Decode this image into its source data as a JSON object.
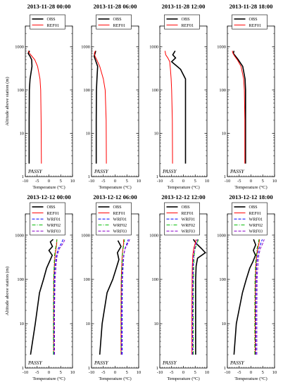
{
  "figure": {
    "ylabel": "Altitude above station (m)",
    "xlabel": "Temperature (°C)",
    "site_label": "PASSY",
    "x_ticks": [
      "-10",
      "-5",
      "0",
      "5",
      "10"
    ],
    "y_ticks": [
      "1",
      "10",
      "100",
      "1000"
    ]
  },
  "chart_data": [
    {
      "type": "line",
      "title": "2013-11-28 00:00",
      "xlabel": "Temperature (°C)",
      "ylabel": "Altitude above station (m)",
      "xlim": [
        -10,
        10
      ],
      "ylim": [
        1,
        3000
      ],
      "y_scale": "log",
      "grid": false,
      "legend_position": "top",
      "series": [
        {
          "name": "OBS",
          "color": "#000000",
          "dash": "solid",
          "x": [
            -8.4,
            -8.4,
            -8.3,
            -8,
            -7.2,
            -7.3,
            -8,
            -8.8,
            -8.2
          ],
          "y": [
            2,
            20,
            100,
            180,
            350,
            500,
            600,
            700,
            800
          ]
        },
        {
          "name": "REF01",
          "color": "#ff0000",
          "dash": "solid",
          "x": [
            -3.2,
            -3.3,
            -3.5,
            -3.8,
            -4.8,
            -6,
            -7.2,
            -8.2,
            -8.8
          ],
          "y": [
            2,
            20,
            100,
            180,
            350,
            500,
            600,
            700,
            800
          ]
        }
      ]
    },
    {
      "type": "line",
      "title": "2013-11-28 06:00",
      "xlabel": "Temperature (°C)",
      "ylabel": "",
      "xlim": [
        -10,
        10
      ],
      "ylim": [
        1,
        3000
      ],
      "y_scale": "log",
      "grid": false,
      "legend_position": "top",
      "series": [
        {
          "name": "OBS",
          "color": "#000000",
          "dash": "solid",
          "x": [
            -8,
            -8,
            -7.9,
            -7.7,
            -7.4,
            -8.4,
            -8.9,
            -8.5,
            -8.2
          ],
          "y": [
            2,
            20,
            100,
            180,
            350,
            500,
            600,
            700,
            800
          ]
        },
        {
          "name": "REF01",
          "color": "#ff0000",
          "dash": "solid",
          "x": [
            -3.7,
            -3.8,
            -4.2,
            -5,
            -6.5,
            -7.8,
            -8.5,
            -8.8,
            -8.4
          ],
          "y": [
            2,
            20,
            100,
            180,
            350,
            500,
            600,
            700,
            800
          ]
        }
      ]
    },
    {
      "type": "line",
      "title": "2013-11-28 12:00",
      "xlabel": "Temperature (°C)",
      "ylabel": "",
      "xlim": [
        -10,
        10
      ],
      "ylim": [
        1,
        3000
      ],
      "y_scale": "log",
      "grid": false,
      "legend_position": "top",
      "series": [
        {
          "name": "OBS",
          "color": "#000000",
          "dash": "solid",
          "x": [
            0.9,
            0.9,
            0.9,
            0.9,
            -1.2,
            -5,
            -3.3,
            -4.5,
            -3.5
          ],
          "y": [
            2,
            20,
            100,
            180,
            300,
            450,
            550,
            650,
            800
          ]
        },
        {
          "name": "REF01",
          "color": "#ff0000",
          "dash": "solid",
          "x": [
            -4.6,
            -4.7,
            -5,
            -5.2,
            -5.5,
            -5.8,
            -6.6,
            -7.5,
            -7.8
          ],
          "y": [
            2,
            20,
            100,
            180,
            300,
            450,
            550,
            650,
            800
          ]
        }
      ]
    },
    {
      "type": "line",
      "title": "2013-11-28 18:00",
      "xlabel": "Temperature (°C)",
      "ylabel": "",
      "xlim": [
        -10,
        10
      ],
      "ylim": [
        1,
        3000
      ],
      "y_scale": "log",
      "grid": false,
      "legend_position": "top",
      "series": [
        {
          "name": "OBS",
          "color": "#000000",
          "dash": "solid",
          "x": [
            -2.3,
            -2.3,
            -2.3,
            -2.5,
            -3.5,
            -5.4,
            -6.5,
            -7.5,
            -7.2
          ],
          "y": [
            2,
            20,
            100,
            180,
            350,
            500,
            600,
            700,
            800
          ]
        },
        {
          "name": "REF01",
          "color": "#ff0000",
          "dash": "solid",
          "x": [
            -2.6,
            -2.6,
            -2.8,
            -3.1,
            -4.2,
            -5.8,
            -6.9,
            -7.6,
            -7.9
          ],
          "y": [
            2,
            20,
            100,
            180,
            350,
            500,
            600,
            700,
            800
          ]
        }
      ]
    },
    {
      "type": "line",
      "title": "2013-12-12 00:00",
      "xlabel": "Temperature (°C)",
      "ylabel": "Altitude above station (m)",
      "xlim": [
        -10,
        10
      ],
      "ylim": [
        1,
        3000
      ],
      "y_scale": "log",
      "grid": false,
      "legend_position": "top",
      "series": [
        {
          "name": "OBS",
          "color": "#000000",
          "dash": "solid",
          "x": [
            -7.8,
            -5.8,
            -4,
            -2.3,
            -1,
            0.2,
            1.4,
            0,
            1.5,
            0.6,
            1.8
          ],
          "y": [
            2,
            10,
            50,
            100,
            180,
            250,
            350,
            450,
            550,
            700,
            800
          ]
        },
        {
          "name": "REF01",
          "color": "#ff0000",
          "dash": "solid",
          "x": [
            2,
            2,
            2.1,
            2.3,
            2.6,
            3,
            3.3,
            3.3
          ],
          "y": [
            2,
            20,
            100,
            200,
            350,
            500,
            650,
            800
          ]
        },
        {
          "name": "WRF01",
          "color": "#0000ff",
          "dash": "dashed",
          "x": [
            2.2,
            2.2,
            2.3,
            2.6,
            3.2,
            4,
            5.3,
            6
          ],
          "y": [
            2,
            20,
            100,
            200,
            350,
            500,
            650,
            800
          ]
        },
        {
          "name": "WRF02",
          "color": "#00bb00",
          "dash": "dashdot",
          "x": [
            1.9,
            1.9,
            2,
            2.2,
            2.4,
            2.8,
            3.2,
            3.4
          ],
          "y": [
            2,
            20,
            100,
            200,
            350,
            500,
            650,
            800
          ]
        },
        {
          "name": "WRF03",
          "color": "#8a00c8",
          "dash": "dashed",
          "x": [
            2.4,
            2.4,
            2.6,
            3,
            3.5,
            4.5,
            6,
            6.8
          ],
          "y": [
            2,
            20,
            100,
            200,
            350,
            500,
            650,
            800
          ]
        }
      ]
    },
    {
      "type": "line",
      "title": "2013-12-12 06:00",
      "xlabel": "Temperature (°C)",
      "ylabel": "",
      "xlim": [
        -10,
        10
      ],
      "ylim": [
        1,
        3000
      ],
      "y_scale": "log",
      "grid": false,
      "legend_position": "top",
      "series": [
        {
          "name": "OBS",
          "color": "#000000",
          "dash": "solid",
          "x": [
            -6.5,
            -5.5,
            -3.4,
            -1,
            0.5,
            1.6,
            1,
            2.5,
            1.2
          ],
          "y": [
            2,
            10,
            50,
            100,
            180,
            280,
            400,
            550,
            750
          ]
        },
        {
          "name": "REF01",
          "color": "#ff0000",
          "dash": "solid",
          "x": [
            2.5,
            2.5,
            2.6,
            2.8,
            3,
            3.3,
            3.6,
            3.6
          ],
          "y": [
            2,
            20,
            100,
            200,
            350,
            500,
            650,
            800
          ]
        },
        {
          "name": "WRF01",
          "color": "#0000ff",
          "dash": "dashed",
          "x": [
            3,
            3,
            3.1,
            3.4,
            3.7,
            4.2,
            5,
            5.6
          ],
          "y": [
            2,
            20,
            100,
            200,
            350,
            500,
            650,
            800
          ]
        },
        {
          "name": "WRF02",
          "color": "#00bb00",
          "dash": "dashdot",
          "x": [
            2.6,
            2.6,
            2.7,
            2.9,
            3.1,
            3.4,
            3.8,
            4
          ],
          "y": [
            2,
            20,
            100,
            200,
            350,
            500,
            650,
            800
          ]
        },
        {
          "name": "WRF03",
          "color": "#8a00c8",
          "dash": "dashed",
          "x": [
            2.7,
            2.7,
            2.9,
            3.2,
            3.6,
            4.3,
            5.4,
            6.2
          ],
          "y": [
            2,
            20,
            100,
            200,
            350,
            500,
            650,
            800
          ]
        }
      ]
    },
    {
      "type": "line",
      "title": "2013-12-12 12:00",
      "xlabel": "Temperature (°C)",
      "ylabel": "",
      "xlim": [
        -10,
        10
      ],
      "ylim": [
        1,
        3000
      ],
      "y_scale": "log",
      "grid": false,
      "legend_position": "top",
      "series": [
        {
          "name": "OBS",
          "color": "#000000",
          "dash": "solid",
          "x": [
            5.2,
            5.2,
            5.2,
            5.4,
            6,
            9.3,
            7.6,
            5.4,
            4.2
          ],
          "y": [
            2,
            20,
            100,
            200,
            300,
            400,
            500,
            650,
            800
          ]
        },
        {
          "name": "REF01",
          "color": "#ff0000",
          "dash": "solid",
          "x": [
            3.6,
            3.6,
            3.7,
            3.8,
            4,
            4.4,
            5,
            5.4
          ],
          "y": [
            2,
            20,
            100,
            200,
            350,
            500,
            650,
            800
          ]
        },
        {
          "name": "WRF01",
          "color": "#0000ff",
          "dash": "dashed",
          "x": [
            4,
            4,
            4.1,
            4.2,
            4.4,
            4.8,
            5.5,
            6
          ],
          "y": [
            2,
            20,
            100,
            200,
            350,
            500,
            650,
            800
          ]
        },
        {
          "name": "WRF02",
          "color": "#00bb00",
          "dash": "dashdot",
          "x": [
            4.2,
            4.2,
            4.3,
            4.4,
            4.6,
            5,
            5.8,
            6.4
          ],
          "y": [
            2,
            20,
            100,
            200,
            350,
            500,
            650,
            800
          ]
        },
        {
          "name": "WRF03",
          "color": "#8a00c8",
          "dash": "dashed",
          "x": [
            3.8,
            3.8,
            3.9,
            4,
            4.3,
            4.8,
            5.4,
            6
          ],
          "y": [
            2,
            20,
            100,
            200,
            350,
            500,
            650,
            800
          ]
        }
      ]
    },
    {
      "type": "line",
      "title": "2013-12-12 18:00",
      "xlabel": "Temperature (°C)",
      "ylabel": "",
      "xlim": [
        -10,
        10
      ],
      "ylim": [
        1,
        3000
      ],
      "y_scale": "log",
      "grid": false,
      "legend_position": "top",
      "series": [
        {
          "name": "OBS",
          "color": "#000000",
          "dash": "solid",
          "x": [
            -7.2,
            -6.2,
            -3.6,
            -2,
            -0.5,
            0.8,
            1.9,
            1,
            2,
            1.1
          ],
          "y": [
            2,
            10,
            50,
            100,
            180,
            250,
            350,
            450,
            600,
            800
          ]
        },
        {
          "name": "REF01",
          "color": "#ff0000",
          "dash": "solid",
          "x": [
            1.8,
            1.8,
            1.9,
            2.1,
            2.4,
            2.9,
            3.4,
            3.6
          ],
          "y": [
            2,
            20,
            100,
            200,
            350,
            500,
            650,
            800
          ]
        },
        {
          "name": "WRF01",
          "color": "#0000ff",
          "dash": "dashed",
          "x": [
            2.1,
            2.1,
            2.2,
            2.4,
            2.8,
            3.4,
            4.2,
            4.8
          ],
          "y": [
            2,
            20,
            100,
            200,
            350,
            500,
            650,
            800
          ]
        },
        {
          "name": "WRF02",
          "color": "#00bb00",
          "dash": "dashdot",
          "x": [
            1.6,
            1.6,
            1.7,
            1.9,
            2.2,
            2.6,
            3.1,
            3.4
          ],
          "y": [
            2,
            20,
            100,
            200,
            350,
            500,
            650,
            800
          ]
        },
        {
          "name": "WRF03",
          "color": "#8a00c8",
          "dash": "dashed",
          "x": [
            2.5,
            2.5,
            2.6,
            2.9,
            3.3,
            4,
            5,
            5.6
          ],
          "y": [
            2,
            20,
            100,
            200,
            350,
            500,
            650,
            800
          ]
        }
      ]
    }
  ]
}
